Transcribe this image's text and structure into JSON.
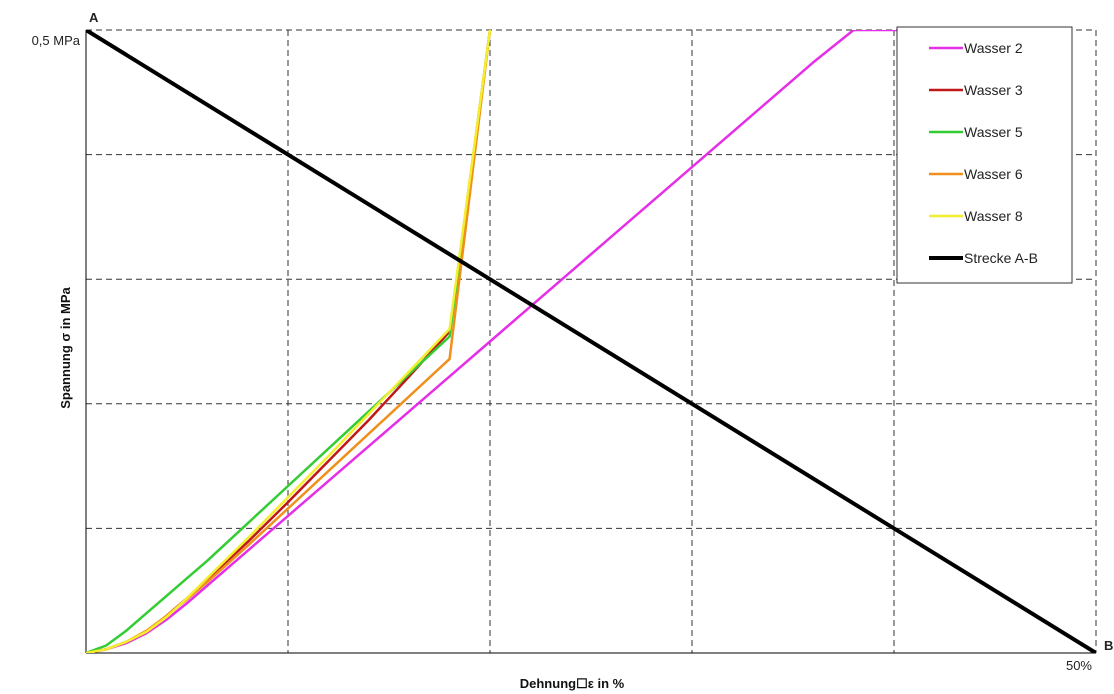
{
  "chart_data": {
    "type": "line",
    "xlabel": "Dehnung☐ε in %",
    "ylabel": "Spannung σ in MPa",
    "xlim": [
      0,
      50
    ],
    "ylim": [
      0,
      0.5
    ],
    "grid": true,
    "legend_position": "top-right",
    "y_tick_label": "0,5 MPa",
    "x_tick_label": "50%",
    "point_labels": {
      "a": "A",
      "b": "B"
    },
    "series": [
      {
        "name": "Wasser 2",
        "color": "#e62ee6",
        "x": [
          0,
          1,
          2,
          3,
          4,
          5,
          6,
          8,
          10,
          12,
          14,
          16,
          18,
          20,
          22,
          24,
          26,
          28,
          30,
          32,
          34,
          36,
          38,
          40,
          42,
          43.5
        ],
        "y": [
          0,
          0.003,
          0.008,
          0.016,
          0.027,
          0.04,
          0.054,
          0.082,
          0.11,
          0.138,
          0.166,
          0.194,
          0.222,
          0.25,
          0.278,
          0.306,
          0.334,
          0.362,
          0.39,
          0.418,
          0.446,
          0.474,
          0.5,
          0.5,
          0.5,
          0.5
        ]
      },
      {
        "name": "Wasser 3",
        "color": "#c01818",
        "x": [
          0,
          1,
          2,
          3,
          4,
          5,
          6,
          8,
          10,
          12,
          14,
          16,
          18,
          20
        ],
        "y": [
          0,
          0.003,
          0.009,
          0.017,
          0.03,
          0.044,
          0.059,
          0.089,
          0.121,
          0.154,
          0.187,
          0.222,
          0.258,
          0.5
        ]
      },
      {
        "name": "Wasser 5",
        "color": "#33cc33",
        "x": [
          0,
          1,
          2,
          3,
          4,
          5,
          6,
          8,
          10,
          12,
          14,
          16,
          18,
          20
        ],
        "y": [
          0,
          0.006,
          0.018,
          0.032,
          0.046,
          0.06,
          0.074,
          0.104,
          0.134,
          0.164,
          0.194,
          0.224,
          0.254,
          0.5
        ]
      },
      {
        "name": "Wasser 6",
        "color": "#f0901c",
        "x": [
          0,
          1,
          2,
          3,
          4,
          5,
          6,
          8,
          10,
          12,
          14,
          16,
          18,
          20
        ],
        "y": [
          0,
          0.003,
          0.009,
          0.018,
          0.03,
          0.043,
          0.057,
          0.086,
          0.116,
          0.146,
          0.176,
          0.206,
          0.236,
          0.5
        ]
      },
      {
        "name": "Wasser 8",
        "color": "#f2ee30",
        "x": [
          0,
          1,
          2,
          3,
          4,
          5,
          6,
          8,
          10,
          12,
          14,
          16,
          18,
          20
        ],
        "y": [
          0,
          0.003,
          0.009,
          0.017,
          0.029,
          0.044,
          0.06,
          0.092,
          0.125,
          0.158,
          0.192,
          0.226,
          0.26,
          0.5
        ]
      },
      {
        "name": "Strecke A-B",
        "color": "#000000",
        "x": [
          0,
          50
        ],
        "y": [
          0.5,
          0
        ]
      }
    ]
  }
}
